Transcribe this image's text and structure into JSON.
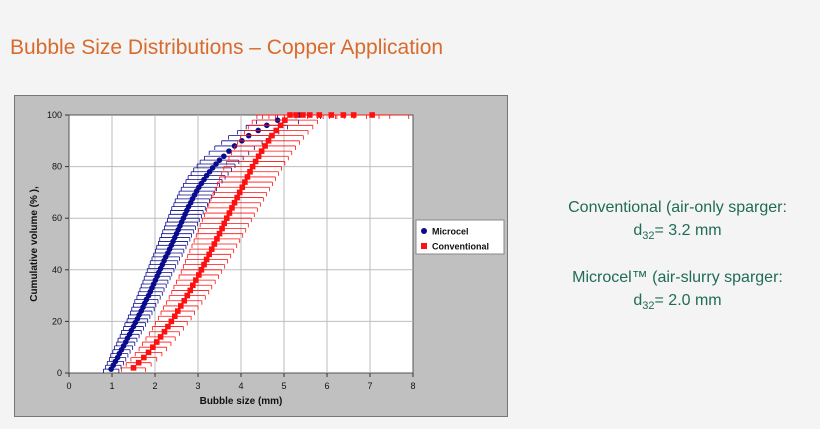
{
  "title": "Bubble Size Distributions – Copper Application",
  "notes": {
    "conventional_line1": "Conventional (air-only sparger:",
    "conventional_prefix": "d",
    "conventional_sub": "32",
    "conventional_value": "= 3.2 mm",
    "microcel_line1": "Microcel™ (air-slurry sparger:",
    "microcel_prefix": "d",
    "microcel_sub": "32",
    "microcel_value": "= 2.0 mm"
  },
  "chart_data": {
    "type": "scatter",
    "xlabel": "Bubble size (mm)",
    "ylabel": "Cumulative volume (% ),",
    "xlim": [
      0,
      8
    ],
    "ylim": [
      0,
      100
    ],
    "x_ticks": [
      "0",
      "1",
      "2",
      "3",
      "4",
      "5",
      "6",
      "7",
      "8"
    ],
    "y_ticks": [
      "0",
      "20",
      "40",
      "60",
      "80",
      "100"
    ],
    "grid": true,
    "legend": "right",
    "series": [
      {
        "name": "Microcel",
        "color": "#0a0a8c",
        "marker": "circle",
        "x": [
          0.98,
          1.03,
          1.08,
          1.13,
          1.17,
          1.22,
          1.27,
          1.32,
          1.36,
          1.41,
          1.45,
          1.5,
          1.54,
          1.59,
          1.63,
          1.68,
          1.72,
          1.76,
          1.8,
          1.85,
          1.89,
          1.93,
          1.97,
          2.01,
          2.05,
          2.09,
          2.13,
          2.17,
          2.21,
          2.25,
          2.3,
          2.34,
          2.38,
          2.42,
          2.46,
          2.5,
          2.54,
          2.58,
          2.62,
          2.66,
          2.7,
          2.74,
          2.78,
          2.83,
          2.87,
          2.92,
          2.97,
          3.02,
          3.08,
          3.14,
          3.2,
          3.27,
          3.34,
          3.42,
          3.5,
          3.6,
          3.72,
          3.85,
          4.02,
          4.18,
          4.4,
          4.6,
          4.85,
          5.35
        ],
        "y": [
          1.5,
          3,
          4.5,
          6,
          7.5,
          9,
          10.5,
          12,
          13.5,
          15,
          16.5,
          18,
          19.5,
          21,
          22.5,
          24,
          25.5,
          27,
          28.5,
          30,
          31.5,
          33,
          34.5,
          36,
          37.5,
          39,
          40.5,
          42,
          43.5,
          45,
          46.5,
          48,
          49.5,
          51,
          52.5,
          54,
          55.5,
          57,
          58.5,
          60,
          61.5,
          63,
          64.5,
          66,
          67.5,
          69,
          70.5,
          72,
          73.5,
          75,
          76.5,
          78,
          79.5,
          81,
          82.5,
          84,
          86,
          88,
          90,
          92,
          94,
          96,
          98,
          100
        ],
        "x_err": [
          0.18,
          0.18,
          0.19,
          0.19,
          0.2,
          0.2,
          0.21,
          0.21,
          0.22,
          0.22,
          0.23,
          0.23,
          0.24,
          0.24,
          0.25,
          0.25,
          0.26,
          0.26,
          0.27,
          0.27,
          0.28,
          0.28,
          0.29,
          0.29,
          0.3,
          0.3,
          0.31,
          0.31,
          0.32,
          0.32,
          0.33,
          0.33,
          0.34,
          0.34,
          0.35,
          0.35,
          0.36,
          0.36,
          0.37,
          0.37,
          0.38,
          0.38,
          0.39,
          0.39,
          0.4,
          0.4,
          0.41,
          0.41,
          0.42,
          0.42,
          0.43,
          0.43,
          0.44,
          0.44,
          0.45,
          0.45,
          0.46,
          0.46,
          0.47,
          0.47,
          0.48,
          0.48,
          0.49,
          0.5
        ]
      },
      {
        "name": "Conventional",
        "color": "#ff1010",
        "marker": "square",
        "x": [
          1.5,
          1.62,
          1.74,
          1.85,
          1.95,
          2.04,
          2.13,
          2.22,
          2.3,
          2.38,
          2.46,
          2.53,
          2.6,
          2.68,
          2.75,
          2.82,
          2.88,
          2.95,
          3.02,
          3.08,
          3.14,
          3.2,
          3.26,
          3.32,
          3.38,
          3.44,
          3.5,
          3.56,
          3.61,
          3.67,
          3.73,
          3.79,
          3.85,
          3.91,
          3.97,
          4.03,
          4.09,
          4.15,
          4.21,
          4.27,
          4.34,
          4.41,
          4.48,
          4.56,
          4.64,
          4.72,
          4.82,
          4.92,
          5.02,
          5.14,
          5.28,
          5.44,
          5.6,
          5.82,
          6.1,
          6.38,
          6.62,
          7.05
        ],
        "y": [
          2,
          4,
          6,
          8,
          10,
          12,
          14,
          16,
          18,
          20,
          22,
          24,
          26,
          28,
          30,
          32,
          34,
          36,
          38,
          40,
          42,
          44,
          46,
          48,
          50,
          52,
          54,
          56,
          58,
          60,
          62,
          64,
          66,
          68,
          70,
          72,
          74,
          76,
          78,
          80,
          82,
          84,
          86,
          88,
          90,
          92,
          94,
          96,
          98,
          100,
          100,
          100,
          100,
          100,
          100,
          100,
          100,
          100
        ],
        "x_err": [
          0.28,
          0.29,
          0.3,
          0.31,
          0.32,
          0.33,
          0.34,
          0.35,
          0.36,
          0.37,
          0.38,
          0.39,
          0.4,
          0.41,
          0.42,
          0.43,
          0.44,
          0.45,
          0.46,
          0.47,
          0.48,
          0.49,
          0.5,
          0.51,
          0.52,
          0.53,
          0.54,
          0.55,
          0.56,
          0.57,
          0.58,
          0.59,
          0.6,
          0.61,
          0.62,
          0.63,
          0.64,
          0.65,
          0.66,
          0.67,
          0.68,
          0.69,
          0.7,
          0.71,
          0.72,
          0.73,
          0.74,
          0.75,
          0.76,
          0.77,
          0.78,
          0.79,
          0.8,
          0.81,
          0.82,
          0.83,
          0.84,
          0.85
        ]
      }
    ]
  }
}
